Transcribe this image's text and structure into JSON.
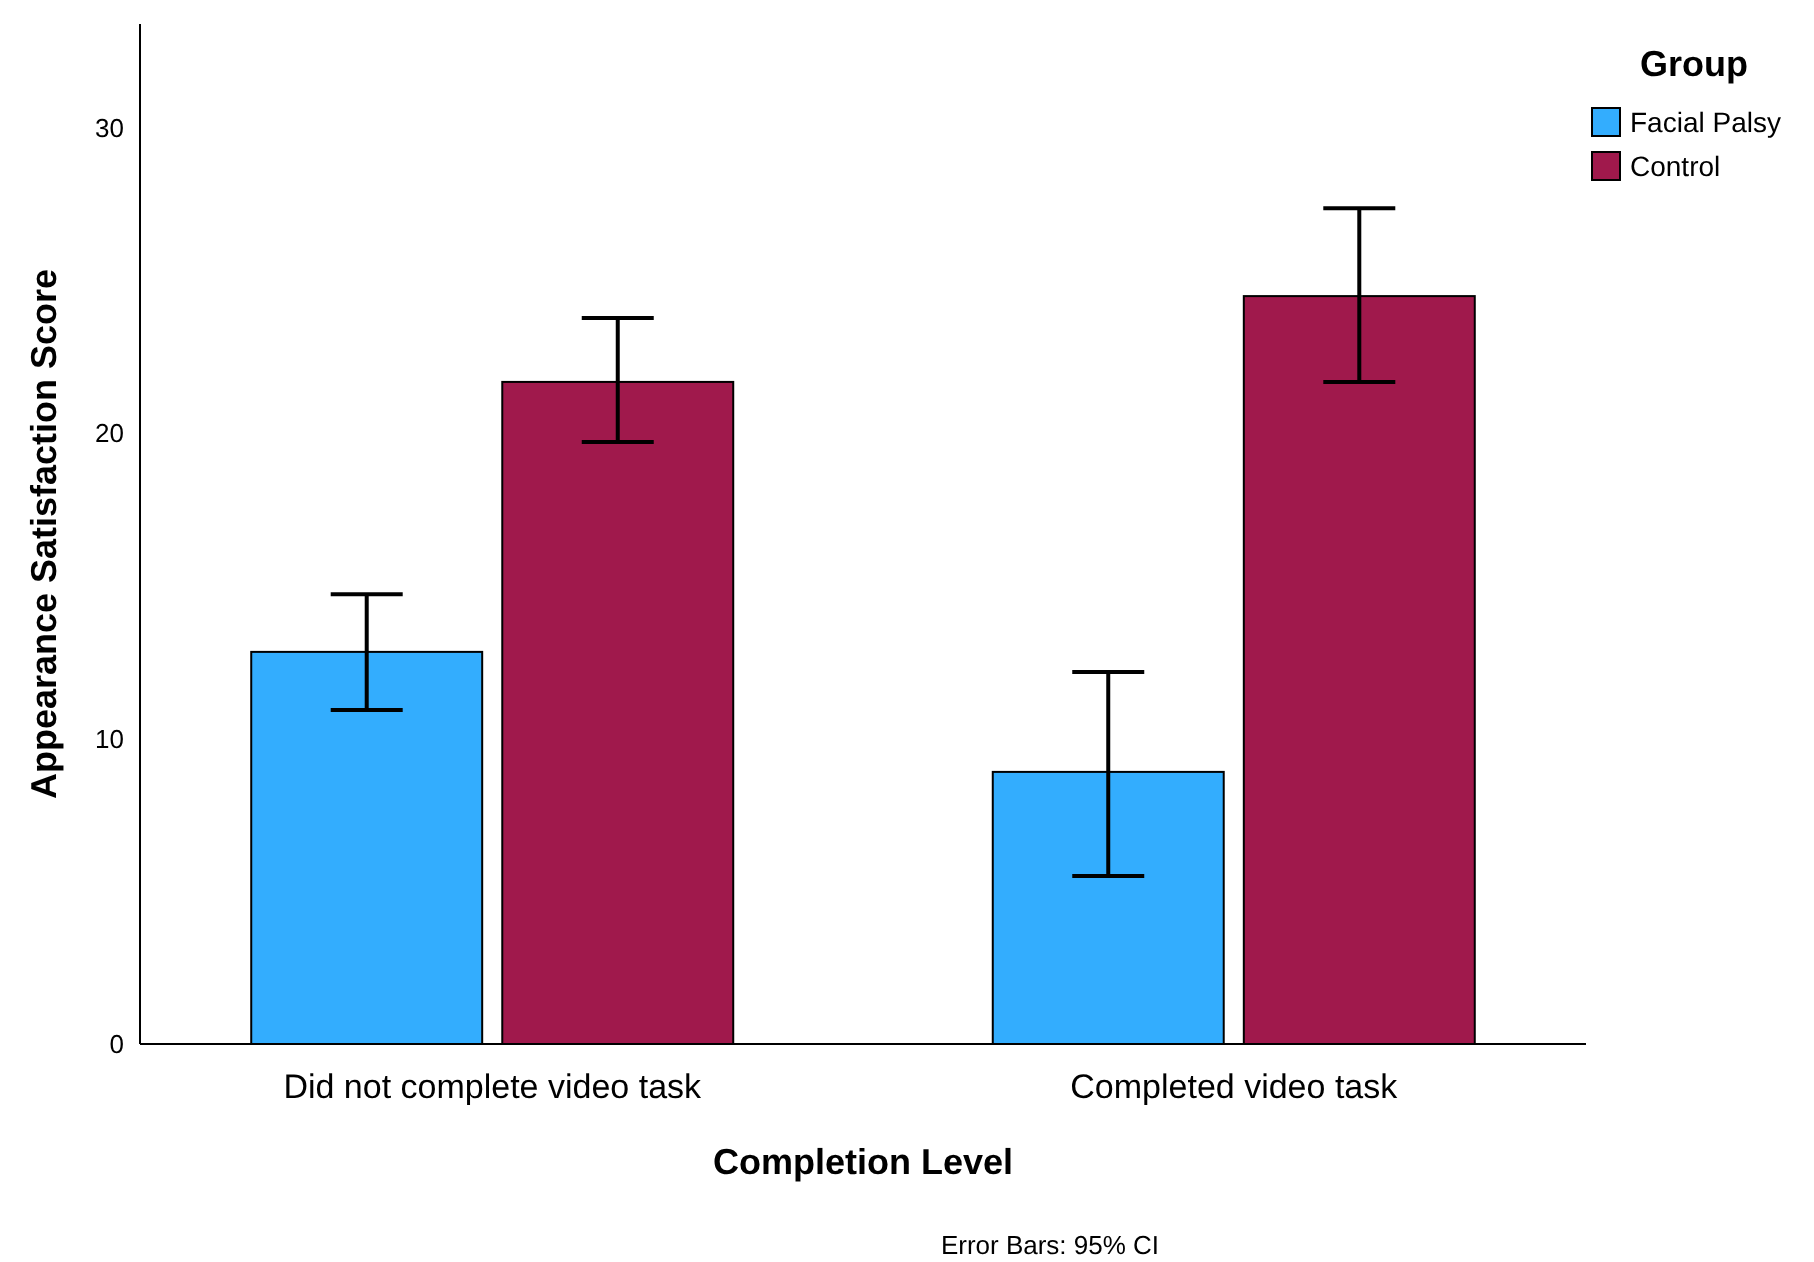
{
  "chart_data": {
    "type": "bar",
    "xlabel": "Completion Level",
    "ylabel": "Appearance Satisfaction Score",
    "legend_title": "Group",
    "categories": [
      "Did not complete video task",
      "Completed video task"
    ],
    "series": [
      {
        "name": "Facial Palsy",
        "color": "#33adfe",
        "values": [
          12.84,
          8.91
        ],
        "errors": [
          [
            10.94,
            14.73
          ],
          [
            5.5,
            12.18
          ]
        ]
      },
      {
        "name": "Control",
        "color": "#a0194c",
        "values": [
          21.68,
          24.49
        ],
        "errors": [
          [
            19.71,
            23.77
          ],
          [
            21.68,
            27.37
          ]
        ]
      }
    ],
    "ylim": [
      0,
      33.4
    ],
    "yticks": [
      0,
      10,
      20,
      30
    ],
    "grid": false,
    "legend": "top right",
    "annotations": [
      "Error Bars: 95% CI"
    ]
  }
}
